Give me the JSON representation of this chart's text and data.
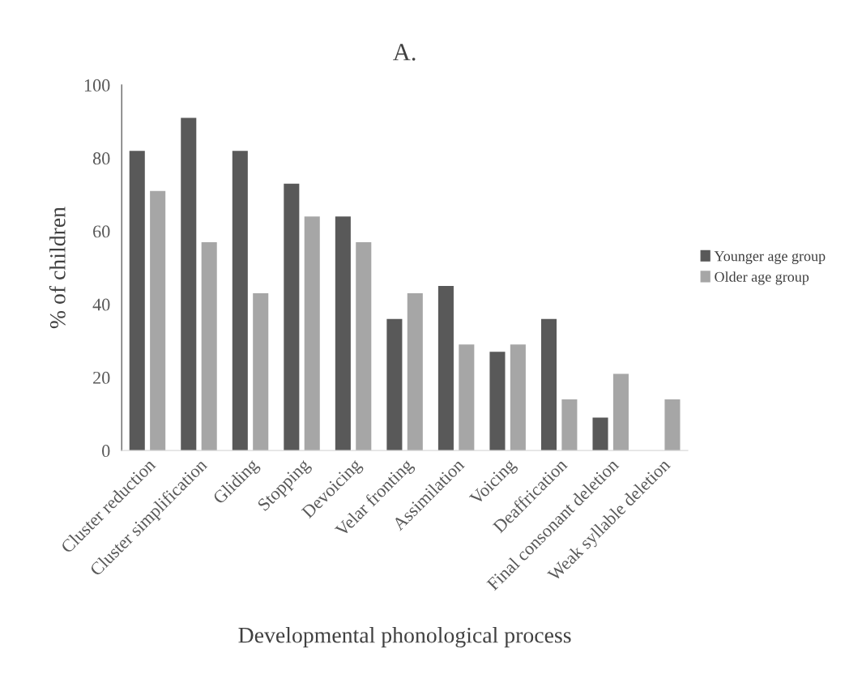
{
  "chart_data": {
    "type": "bar",
    "title": "A.",
    "xlabel": "Developmental phonological process",
    "ylabel": "% of children",
    "categories": [
      "Cluster reduction",
      "Cluster simplification",
      "Gliding",
      "Stopping",
      "Devoicing",
      "Velar fronting",
      "Assimilation",
      "Voicing",
      "Deaffrication",
      "Final consonant deletion",
      "Weak syllable deletion"
    ],
    "series": [
      {
        "name": "Younger age group",
        "color": "#595959",
        "values": [
          82,
          91,
          82,
          73,
          64,
          36,
          45,
          27,
          36,
          9,
          0
        ]
      },
      {
        "name": "Older age group",
        "color": "#a6a6a6",
        "values": [
          71,
          57,
          43,
          64,
          57,
          43,
          29,
          29,
          14,
          21,
          14
        ]
      }
    ],
    "ylim": [
      0,
      100
    ],
    "yticks": [
      0,
      20,
      40,
      60,
      80,
      100
    ],
    "grid": false,
    "legend": "right"
  }
}
